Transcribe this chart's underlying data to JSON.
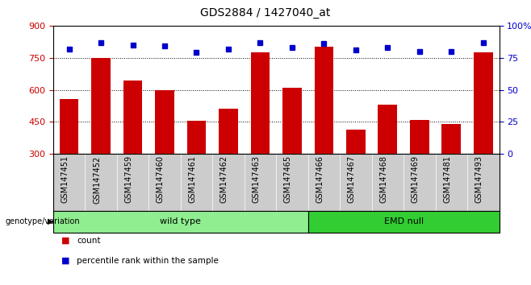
{
  "title": "GDS2884 / 1427040_at",
  "samples": [
    "GSM147451",
    "GSM147452",
    "GSM147459",
    "GSM147460",
    "GSM147461",
    "GSM147462",
    "GSM147463",
    "GSM147465",
    "GSM147466",
    "GSM147467",
    "GSM147468",
    "GSM147469",
    "GSM147481",
    "GSM147493"
  ],
  "bar_values": [
    555,
    750,
    645,
    600,
    455,
    510,
    775,
    610,
    800,
    415,
    530,
    460,
    440,
    775
  ],
  "percentile_values": [
    82,
    87,
    85,
    84,
    79,
    82,
    87,
    83,
    86,
    81,
    83,
    80,
    80,
    87
  ],
  "bar_color": "#cc0000",
  "dot_color": "#0000cc",
  "ylim_left": [
    300,
    900
  ],
  "ylim_right": [
    0,
    100
  ],
  "yticks_left": [
    300,
    450,
    600,
    750,
    900
  ],
  "yticks_right": [
    0,
    25,
    50,
    75,
    100
  ],
  "grid_values": [
    450,
    600,
    750
  ],
  "wt_count": 8,
  "emd_count": 6,
  "wild_type_color": "#90ee90",
  "emd_null_color": "#32cd32",
  "genotype_label": "genotype/variation",
  "legend_count_label": "count",
  "legend_percentile_label": "percentile rank within the sample",
  "bar_width": 0.6,
  "background_color": "#ffffff",
  "bar_color_left": "#cc0000",
  "dot_color_right": "#0000cc",
  "title_fontsize": 10,
  "tick_fontsize": 8,
  "xlabel_fontsize": 7
}
